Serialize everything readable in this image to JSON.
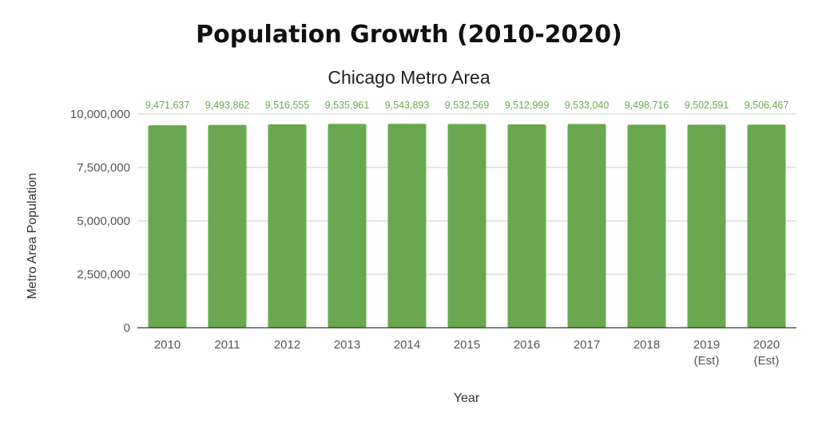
{
  "chart_data": {
    "type": "bar",
    "title": "Population Growth (2010-2020)",
    "subtitle": "Chicago Metro Area",
    "xlabel": "Year",
    "ylabel": "Metro Area Population",
    "categories": [
      [
        "2010"
      ],
      [
        "2011"
      ],
      [
        "2012"
      ],
      [
        "2013"
      ],
      [
        "2014"
      ],
      [
        "2015"
      ],
      [
        "2016"
      ],
      [
        "2017"
      ],
      [
        "2018"
      ],
      [
        "2019",
        "(Est)"
      ],
      [
        "2020",
        "(Est)"
      ]
    ],
    "values": [
      9471637,
      9493862,
      9516555,
      9535961,
      9543893,
      9532569,
      9512999,
      9533040,
      9498716,
      9502591,
      9506467
    ],
    "value_labels": [
      "9,471,637",
      "9,493,862",
      "9,516,555",
      "9,535,961",
      "9,543,893",
      "9,532,569",
      "9,512,999",
      "9,533,040",
      "9,498,716",
      "9,502,591",
      "9,506,467"
    ],
    "yticks": [
      0,
      2500000,
      5000000,
      7500000,
      10000000
    ],
    "ytick_labels": [
      "0",
      "2,500,000",
      "5,000,000",
      "7,500,000",
      "10,000,000"
    ],
    "ylim": [
      0,
      10000000
    ],
    "grid": true,
    "bar_color": "#6aa84f",
    "label_color": "#6aa84f"
  }
}
